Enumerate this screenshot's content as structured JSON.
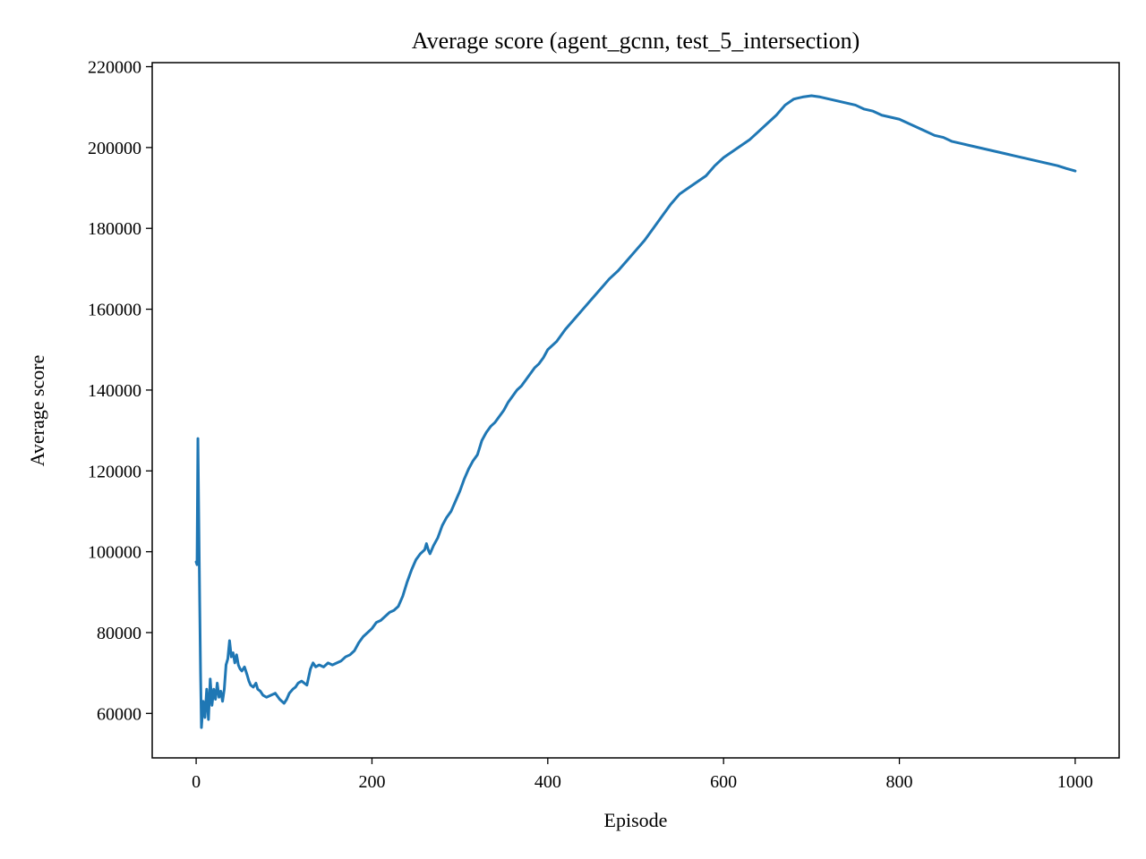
{
  "chart_data": {
    "type": "line",
    "title": "Average score (agent_gcnn, test_5_intersection)",
    "xlabel": "Episode",
    "ylabel": "Average score",
    "xlim": [
      -50,
      1050
    ],
    "ylim": [
      49000,
      221000
    ],
    "x_ticks": [
      0,
      200,
      400,
      600,
      800,
      1000
    ],
    "y_ticks": [
      60000,
      80000,
      100000,
      120000,
      140000,
      160000,
      180000,
      200000,
      220000
    ],
    "x_tick_labels": [
      "0",
      "200",
      "400",
      "600",
      "800",
      "1000"
    ],
    "y_tick_labels": [
      "60000",
      "80000",
      "100000",
      "120000",
      "140000",
      "160000",
      "180000",
      "200000",
      "220000"
    ],
    "grid": false,
    "legend": "none",
    "series": [
      {
        "color": "#1f77b4",
        "x": [
          0,
          1,
          2,
          3,
          4,
          5,
          6,
          8,
          10,
          12,
          14,
          16,
          18,
          20,
          22,
          24,
          26,
          28,
          30,
          32,
          34,
          36,
          38,
          40,
          42,
          44,
          46,
          48,
          50,
          52,
          55,
          58,
          60,
          62,
          65,
          68,
          70,
          73,
          76,
          80,
          85,
          90,
          95,
          100,
          103,
          106,
          110,
          113,
          116,
          120,
          123,
          126,
          130,
          133,
          136,
          140,
          145,
          150,
          155,
          160,
          165,
          170,
          175,
          180,
          185,
          190,
          195,
          200,
          205,
          210,
          215,
          220,
          225,
          230,
          235,
          240,
          245,
          250,
          255,
          260,
          262,
          264,
          266,
          268,
          270,
          275,
          280,
          285,
          290,
          295,
          300,
          305,
          310,
          315,
          320,
          325,
          330,
          335,
          340,
          345,
          350,
          355,
          360,
          365,
          370,
          375,
          380,
          385,
          390,
          395,
          400,
          410,
          420,
          430,
          440,
          450,
          460,
          470,
          480,
          490,
          500,
          510,
          520,
          530,
          540,
          550,
          560,
          570,
          580,
          590,
          600,
          610,
          620,
          630,
          640,
          650,
          660,
          670,
          680,
          690,
          700,
          710,
          720,
          730,
          740,
          750,
          760,
          770,
          780,
          790,
          800,
          810,
          820,
          830,
          840,
          850,
          860,
          870,
          880,
          890,
          900,
          910,
          920,
          930,
          940,
          950,
          960,
          970,
          980,
          990,
          1000
        ],
        "values": [
          97500,
          96800,
          128000,
          108000,
          88000,
          70000,
          56500,
          63000,
          59000,
          66000,
          58500,
          68500,
          62000,
          66000,
          63500,
          67500,
          64000,
          65500,
          63000,
          66000,
          72000,
          73500,
          78000,
          74000,
          75000,
          72500,
          74500,
          72000,
          71000,
          70500,
          71500,
          69500,
          68000,
          67000,
          66500,
          67500,
          66000,
          65500,
          64500,
          64000,
          64500,
          65000,
          63500,
          62500,
          63500,
          65000,
          66000,
          66500,
          67500,
          68000,
          67500,
          67000,
          71000,
          72500,
          71500,
          72000,
          71500,
          72500,
          72000,
          72500,
          73000,
          74000,
          74500,
          75500,
          77500,
          79000,
          80000,
          81000,
          82500,
          83000,
          84000,
          85000,
          85500,
          86500,
          89000,
          92500,
          95500,
          98000,
          99500,
          100500,
          102000,
          100500,
          99500,
          100500,
          101500,
          103500,
          106500,
          108500,
          110000,
          112500,
          115000,
          118000,
          120500,
          122500,
          124000,
          127500,
          129500,
          131000,
          132000,
          133500,
          135000,
          137000,
          138500,
          140000,
          141000,
          142500,
          144000,
          145500,
          146500,
          148000,
          150000,
          152000,
          155000,
          157500,
          160000,
          162500,
          165000,
          167500,
          169500,
          172000,
          174500,
          177000,
          180000,
          183000,
          186000,
          188500,
          190000,
          191500,
          193000,
          195500,
          197500,
          199000,
          200500,
          202000,
          204000,
          206000,
          208000,
          210500,
          212000,
          212500,
          212800,
          212500,
          212000,
          211500,
          211000,
          210500,
          209500,
          209000,
          208000,
          207500,
          207000,
          206000,
          205000,
          204000,
          203000,
          202500,
          201500,
          201000,
          200500,
          200000,
          199500,
          199000,
          198500,
          198000,
          197500,
          197000,
          196500,
          196000,
          195500,
          194800,
          194200
        ]
      }
    ]
  }
}
